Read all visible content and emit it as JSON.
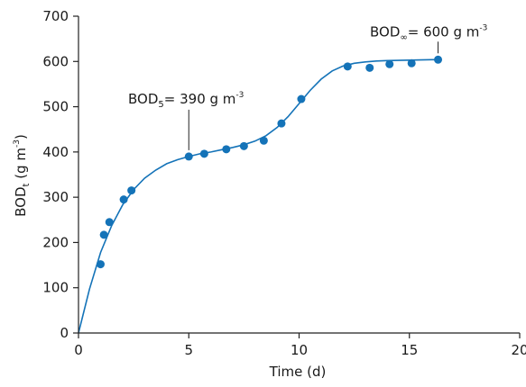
{
  "chart_data": {
    "type": "scatter",
    "xlabel": "Time (d)",
    "ylabel": {
      "main": "BOD",
      "sub": "t",
      "rest": " (g m",
      "sup": "-3",
      "close": ")"
    },
    "xlim": [
      0,
      20
    ],
    "ylim": [
      0,
      700
    ],
    "x_ticks": [
      0,
      5,
      10,
      15,
      20
    ],
    "y_ticks": [
      0,
      100,
      200,
      300,
      400,
      500,
      600,
      700
    ],
    "grid": false,
    "colors": {
      "points": "#1473b8",
      "curve": "#1473b8",
      "axis": "#222222"
    },
    "points": [
      {
        "x": 1.0,
        "y": 152
      },
      {
        "x": 1.15,
        "y": 217
      },
      {
        "x": 1.4,
        "y": 245
      },
      {
        "x": 2.05,
        "y": 295
      },
      {
        "x": 2.4,
        "y": 315
      },
      {
        "x": 5.0,
        "y": 390
      },
      {
        "x": 5.7,
        "y": 396
      },
      {
        "x": 6.7,
        "y": 406
      },
      {
        "x": 7.5,
        "y": 413
      },
      {
        "x": 8.4,
        "y": 425
      },
      {
        "x": 9.2,
        "y": 463
      },
      {
        "x": 10.1,
        "y": 517
      },
      {
        "x": 12.2,
        "y": 589
      },
      {
        "x": 13.2,
        "y": 586
      },
      {
        "x": 14.1,
        "y": 594
      },
      {
        "x": 15.1,
        "y": 596
      },
      {
        "x": 16.3,
        "y": 604
      }
    ],
    "curve": [
      {
        "x": 0,
        "y": 0
      },
      {
        "x": 0.5,
        "y": 97
      },
      {
        "x": 1,
        "y": 178
      },
      {
        "x": 1.5,
        "y": 237
      },
      {
        "x": 2,
        "y": 283
      },
      {
        "x": 2.5,
        "y": 317
      },
      {
        "x": 3,
        "y": 342
      },
      {
        "x": 3.5,
        "y": 360
      },
      {
        "x": 4,
        "y": 374
      },
      {
        "x": 4.5,
        "y": 383
      },
      {
        "x": 5,
        "y": 390
      },
      {
        "x": 5.5,
        "y": 396
      },
      {
        "x": 6,
        "y": 400
      },
      {
        "x": 6.5,
        "y": 405
      },
      {
        "x": 7,
        "y": 410
      },
      {
        "x": 7.5,
        "y": 416
      },
      {
        "x": 8,
        "y": 424
      },
      {
        "x": 8.5,
        "y": 436
      },
      {
        "x": 9,
        "y": 454
      },
      {
        "x": 9.5,
        "y": 478
      },
      {
        "x": 10,
        "y": 507
      },
      {
        "x": 10.5,
        "y": 536
      },
      {
        "x": 11,
        "y": 561
      },
      {
        "x": 11.5,
        "y": 579
      },
      {
        "x": 12,
        "y": 590
      },
      {
        "x": 12.5,
        "y": 596
      },
      {
        "x": 13,
        "y": 599
      },
      {
        "x": 13.5,
        "y": 601
      },
      {
        "x": 14,
        "y": 602
      },
      {
        "x": 15,
        "y": 603
      },
      {
        "x": 16,
        "y": 604
      },
      {
        "x": 16.3,
        "y": 604
      }
    ],
    "annotations": [
      {
        "main": "BOD",
        "sub": "5",
        "rest": "= 390 g m",
        "sup": "-3",
        "x": 5.0,
        "y": 390
      },
      {
        "main": "BOD",
        "sub": "∞",
        "rest": "= 600 g m",
        "sup": "-3",
        "x": 16.3,
        "y": 604
      }
    ]
  }
}
